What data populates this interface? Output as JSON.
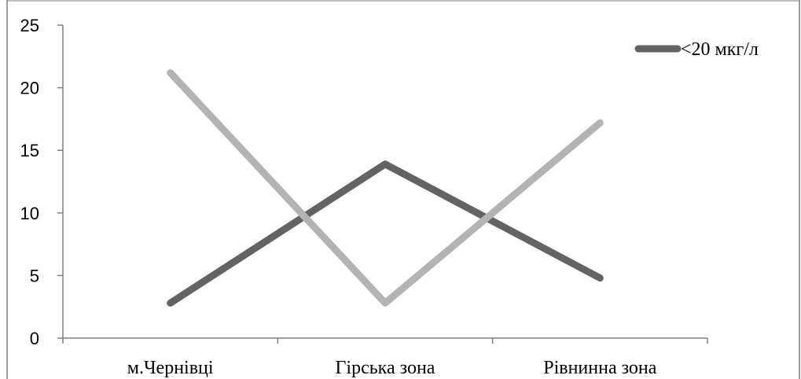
{
  "chart_data": {
    "type": "line",
    "categories": [
      "м.Чернівці",
      "Гірська зона",
      "Рівнинна зона"
    ],
    "ylim": [
      0,
      25
    ],
    "yticks": [
      0,
      5,
      10,
      15,
      20,
      25
    ],
    "grid": false,
    "legend_position": "top-right",
    "series": [
      {
        "name": "<20 мкг/л",
        "values": [
          2.8,
          13.9,
          4.8
        ],
        "color": "#636363",
        "in_legend": true
      },
      {
        "name": "",
        "values": [
          21.2,
          2.8,
          17.2
        ],
        "color": "#b3b3b3",
        "in_legend": false
      }
    ],
    "axis_color": "#7f7f7f",
    "border_color": "#7f7f7f"
  }
}
